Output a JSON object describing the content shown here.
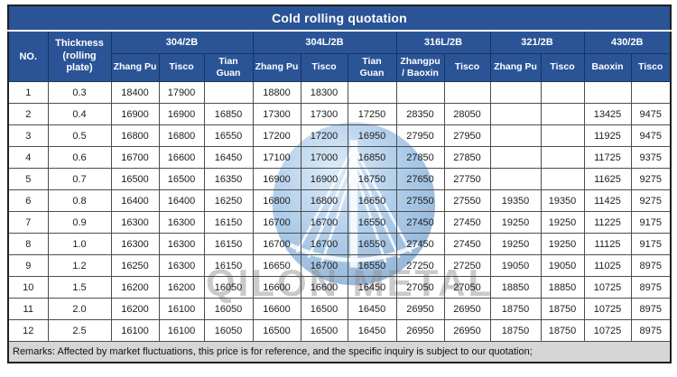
{
  "title": "Cold rolling quotation",
  "header": {
    "no_label": "NO.",
    "thickness_label": "Thickness\n(rolling plate)",
    "groups": [
      {
        "label": "304/2B",
        "cols": [
          "Zhang Pu",
          "Tisco",
          "Tian Guan"
        ]
      },
      {
        "label": "304L/2B",
        "cols": [
          "Zhang Pu",
          "Tisco",
          "Tian Guan"
        ]
      },
      {
        "label": "316L/2B",
        "cols": [
          "Zhangpu\n/ Baoxin",
          "Tisco"
        ]
      },
      {
        "label": "321/2B",
        "cols": [
          "Zhang Pu",
          "Tisco"
        ]
      },
      {
        "label": "430/2B",
        "cols": [
          "Baoxin",
          "Tisco"
        ]
      }
    ]
  },
  "rows": [
    {
      "no": "1",
      "thickness": "0.3",
      "values": [
        "18400",
        "17900",
        "",
        "18800",
        "18300",
        "",
        "",
        "",
        "",
        "",
        "",
        ""
      ]
    },
    {
      "no": "2",
      "thickness": "0.4",
      "values": [
        "16900",
        "16900",
        "16850",
        "17300",
        "17300",
        "17250",
        "28350",
        "28050",
        "",
        "",
        "13425",
        "9475"
      ]
    },
    {
      "no": "3",
      "thickness": "0.5",
      "values": [
        "16800",
        "16800",
        "16550",
        "17200",
        "17200",
        "16950",
        "27950",
        "27950",
        "",
        "",
        "11925",
        "9475"
      ]
    },
    {
      "no": "4",
      "thickness": "0.6",
      "values": [
        "16700",
        "16600",
        "16450",
        "17100",
        "17000",
        "16850",
        "27850",
        "27850",
        "",
        "",
        "11725",
        "9375"
      ]
    },
    {
      "no": "5",
      "thickness": "0.7",
      "values": [
        "16500",
        "16500",
        "16350",
        "16900",
        "16900",
        "16750",
        "27650",
        "27750",
        "",
        "",
        "11625",
        "9275"
      ]
    },
    {
      "no": "6",
      "thickness": "0.8",
      "values": [
        "16400",
        "16400",
        "16250",
        "16800",
        "16800",
        "16650",
        "27550",
        "27550",
        "19350",
        "19350",
        "11425",
        "9275"
      ]
    },
    {
      "no": "7",
      "thickness": "0.9",
      "values": [
        "16300",
        "16300",
        "16150",
        "16700",
        "16700",
        "16550",
        "27450",
        "27450",
        "19250",
        "19250",
        "11225",
        "9175"
      ]
    },
    {
      "no": "8",
      "thickness": "1.0",
      "values": [
        "16300",
        "16300",
        "16150",
        "16700",
        "16700",
        "16550",
        "27450",
        "27450",
        "19250",
        "19250",
        "11125",
        "9175"
      ]
    },
    {
      "no": "9",
      "thickness": "1.2",
      "values": [
        "16250",
        "16300",
        "16150",
        "16650",
        "16700",
        "16550",
        "27250",
        "27250",
        "19050",
        "19050",
        "11025",
        "8975"
      ]
    },
    {
      "no": "10",
      "thickness": "1.5",
      "values": [
        "16200",
        "16200",
        "16050",
        "16600",
        "16600",
        "16450",
        "27050",
        "27050",
        "18850",
        "18850",
        "10725",
        "8975"
      ]
    },
    {
      "no": "11",
      "thickness": "2.0",
      "values": [
        "16200",
        "16100",
        "16050",
        "16600",
        "16500",
        "16450",
        "26950",
        "26950",
        "18750",
        "18750",
        "10725",
        "8975"
      ]
    },
    {
      "no": "12",
      "thickness": "2.5",
      "values": [
        "16100",
        "16100",
        "16050",
        "16500",
        "16500",
        "16450",
        "26950",
        "26950",
        "18750",
        "18750",
        "10725",
        "8975"
      ]
    }
  ],
  "remarks": "Remarks: Affected by market fluctuations, this price is for reference, and the specific inquiry is subject to our quotation;",
  "watermark": {
    "text": "QILON METAL"
  },
  "colors": {
    "header_blue": "#2a5496",
    "header_border": "#16365f",
    "grid_border": "#4d4d4d",
    "outer_border": "#1f1f1f",
    "remarks_bg": "#d6d6d6",
    "watermark_gray": "#8c8c8c",
    "watermark_blue": "#4f8ccc"
  }
}
